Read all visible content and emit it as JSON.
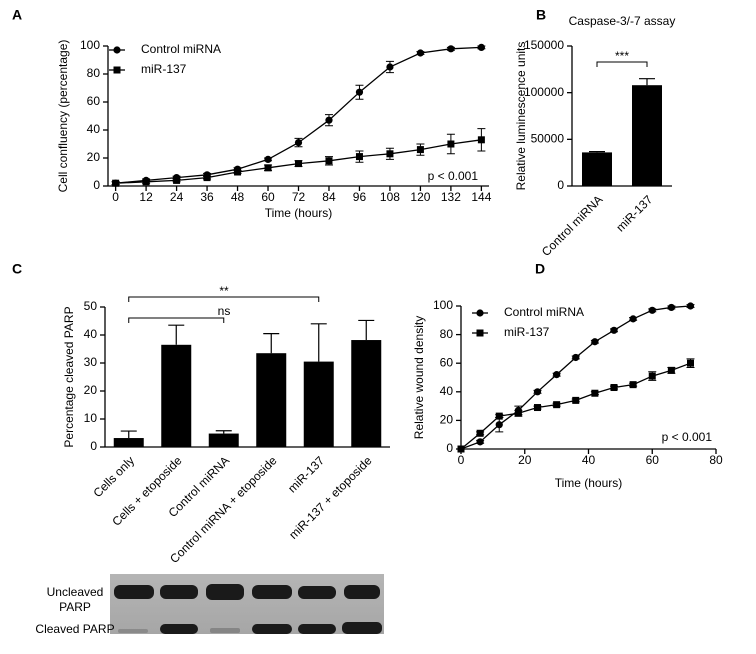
{
  "chart_data": [
    {
      "type": "line",
      "panel": "A",
      "xlabel": "Time (hours)",
      "ylabel": "Cell confluency (percentage)",
      "x": [
        0,
        12,
        24,
        36,
        48,
        60,
        72,
        84,
        96,
        108,
        120,
        132,
        144
      ],
      "series": [
        {
          "name": "Control miRNA",
          "color": "#000000",
          "marker": "circle",
          "values": [
            2,
            4,
            6,
            8,
            12,
            19,
            31,
            47,
            67,
            85,
            95,
            98,
            99
          ],
          "errors": [
            1,
            1,
            1,
            1,
            1,
            1,
            3,
            4,
            5,
            4,
            1,
            1,
            1
          ]
        },
        {
          "name": "miR-137",
          "color": "#000000",
          "marker": "square",
          "values": [
            2,
            3,
            4,
            6,
            10,
            13,
            16,
            18,
            21,
            23,
            26,
            30,
            33
          ],
          "errors": [
            1,
            1,
            1,
            1,
            1,
            2,
            2,
            3,
            4,
            4,
            4,
            7,
            8
          ]
        }
      ],
      "xlim": [
        -3,
        147
      ],
      "xticks": [
        0,
        12,
        24,
        36,
        48,
        60,
        72,
        84,
        96,
        108,
        120,
        132,
        144
      ],
      "ylim": [
        0,
        100
      ],
      "yticks": [
        0,
        20,
        40,
        60,
        80,
        100
      ],
      "annotations": [
        "p < 0.001"
      ]
    },
    {
      "type": "bar",
      "panel": "B",
      "title": "Caspase-3/-7 assay",
      "ylabel": "Relative luminescence units",
      "categories": [
        "Control miRNA",
        "miR-137"
      ],
      "values": [
        36000,
        108000
      ],
      "errors": [
        800,
        7000
      ],
      "color": "#000000",
      "ylim": [
        0,
        150000
      ],
      "yticks": [
        0,
        50000,
        100000,
        150000
      ],
      "annotations": [
        "***"
      ]
    },
    {
      "type": "bar",
      "panel": "C",
      "ylabel": "Percentage cleaved  PARP",
      "categories": [
        "Cells only",
        "Cells + etoposide",
        "Control miRNA",
        "Control miRNA + etoposide",
        "miR-137",
        "miR-137 + etoposide"
      ],
      "values": [
        3.2,
        36.5,
        4.8,
        33.5,
        30.5,
        38.2
      ],
      "errors": [
        2.5,
        7,
        1,
        7,
        13.5,
        7
      ],
      "color": "#000000",
      "ylim": [
        0,
        50
      ],
      "yticks": [
        0,
        10,
        20,
        30,
        40,
        50
      ],
      "annotations": [
        "ns",
        "**"
      ]
    },
    {
      "type": "line",
      "panel": "D",
      "xlabel": "Time (hours)",
      "ylabel": "Relative wound density",
      "x": [
        0,
        6,
        12,
        18,
        24,
        30,
        36,
        42,
        48,
        54,
        60,
        66,
        72
      ],
      "series": [
        {
          "name": "Control miRNA",
          "color": "#000000",
          "marker": "circle",
          "values": [
            0,
            5,
            17,
            27,
            40,
            52,
            64,
            75,
            83,
            91,
            97,
            99,
            100
          ],
          "errors": [
            0,
            1,
            5,
            3,
            1,
            1,
            1,
            1,
            1,
            1,
            1,
            1,
            1
          ]
        },
        {
          "name": "miR-137",
          "color": "#000000",
          "marker": "square",
          "values": [
            0,
            11,
            23,
            25,
            29,
            31,
            34,
            39,
            43,
            45,
            51,
            55,
            60
          ],
          "errors": [
            0,
            1,
            1,
            2,
            1,
            1,
            1,
            1,
            1,
            1,
            3,
            2,
            3
          ]
        }
      ],
      "xlim": [
        0,
        80
      ],
      "xticks": [
        0,
        20,
        40,
        60,
        80
      ],
      "ylim": [
        0,
        100
      ],
      "yticks": [
        0,
        20,
        40,
        60,
        80,
        100
      ],
      "annotations": [
        "p < 0.001"
      ]
    }
  ],
  "blot": {
    "labels": [
      "Uncleaved",
      "PARP",
      "Cleaved PARP"
    ]
  }
}
